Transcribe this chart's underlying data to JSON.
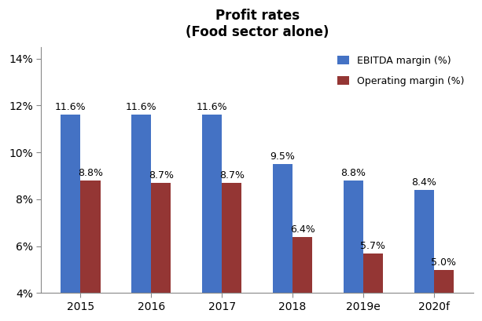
{
  "title": "Profit rates\n(Food sector alone)",
  "categories": [
    "2015",
    "2016",
    "2017",
    "2018",
    "2019e",
    "2020f"
  ],
  "ebitda_values": [
    11.6,
    11.6,
    11.6,
    9.5,
    8.8,
    8.4
  ],
  "operating_values": [
    8.8,
    8.7,
    8.7,
    6.4,
    5.7,
    5.0
  ],
  "ebitda_labels": [
    "11.6%",
    "11.6%",
    "11.6%",
    "9.5%",
    "8.8%",
    "8.4%"
  ],
  "operating_labels": [
    "8.8%",
    "8.7%",
    "8.7%",
    "6.4%",
    "5.7%",
    "5.0%"
  ],
  "ebitda_color": "#4472C4",
  "operating_color": "#943634",
  "ylim_min": 4,
  "ylim_max": 14.5,
  "ybase": 4,
  "yticks": [
    4,
    6,
    8,
    10,
    12,
    14
  ],
  "ytick_labels": [
    "4%",
    "6%",
    "8%",
    "10%",
    "12%",
    "14%"
  ],
  "legend_labels": [
    "EBITDA margin (%)",
    "Operating margin (%)"
  ],
  "bar_width": 0.28,
  "label_fontsize": 9,
  "title_fontsize": 12,
  "legend_fontsize": 9,
  "tick_fontsize": 10
}
